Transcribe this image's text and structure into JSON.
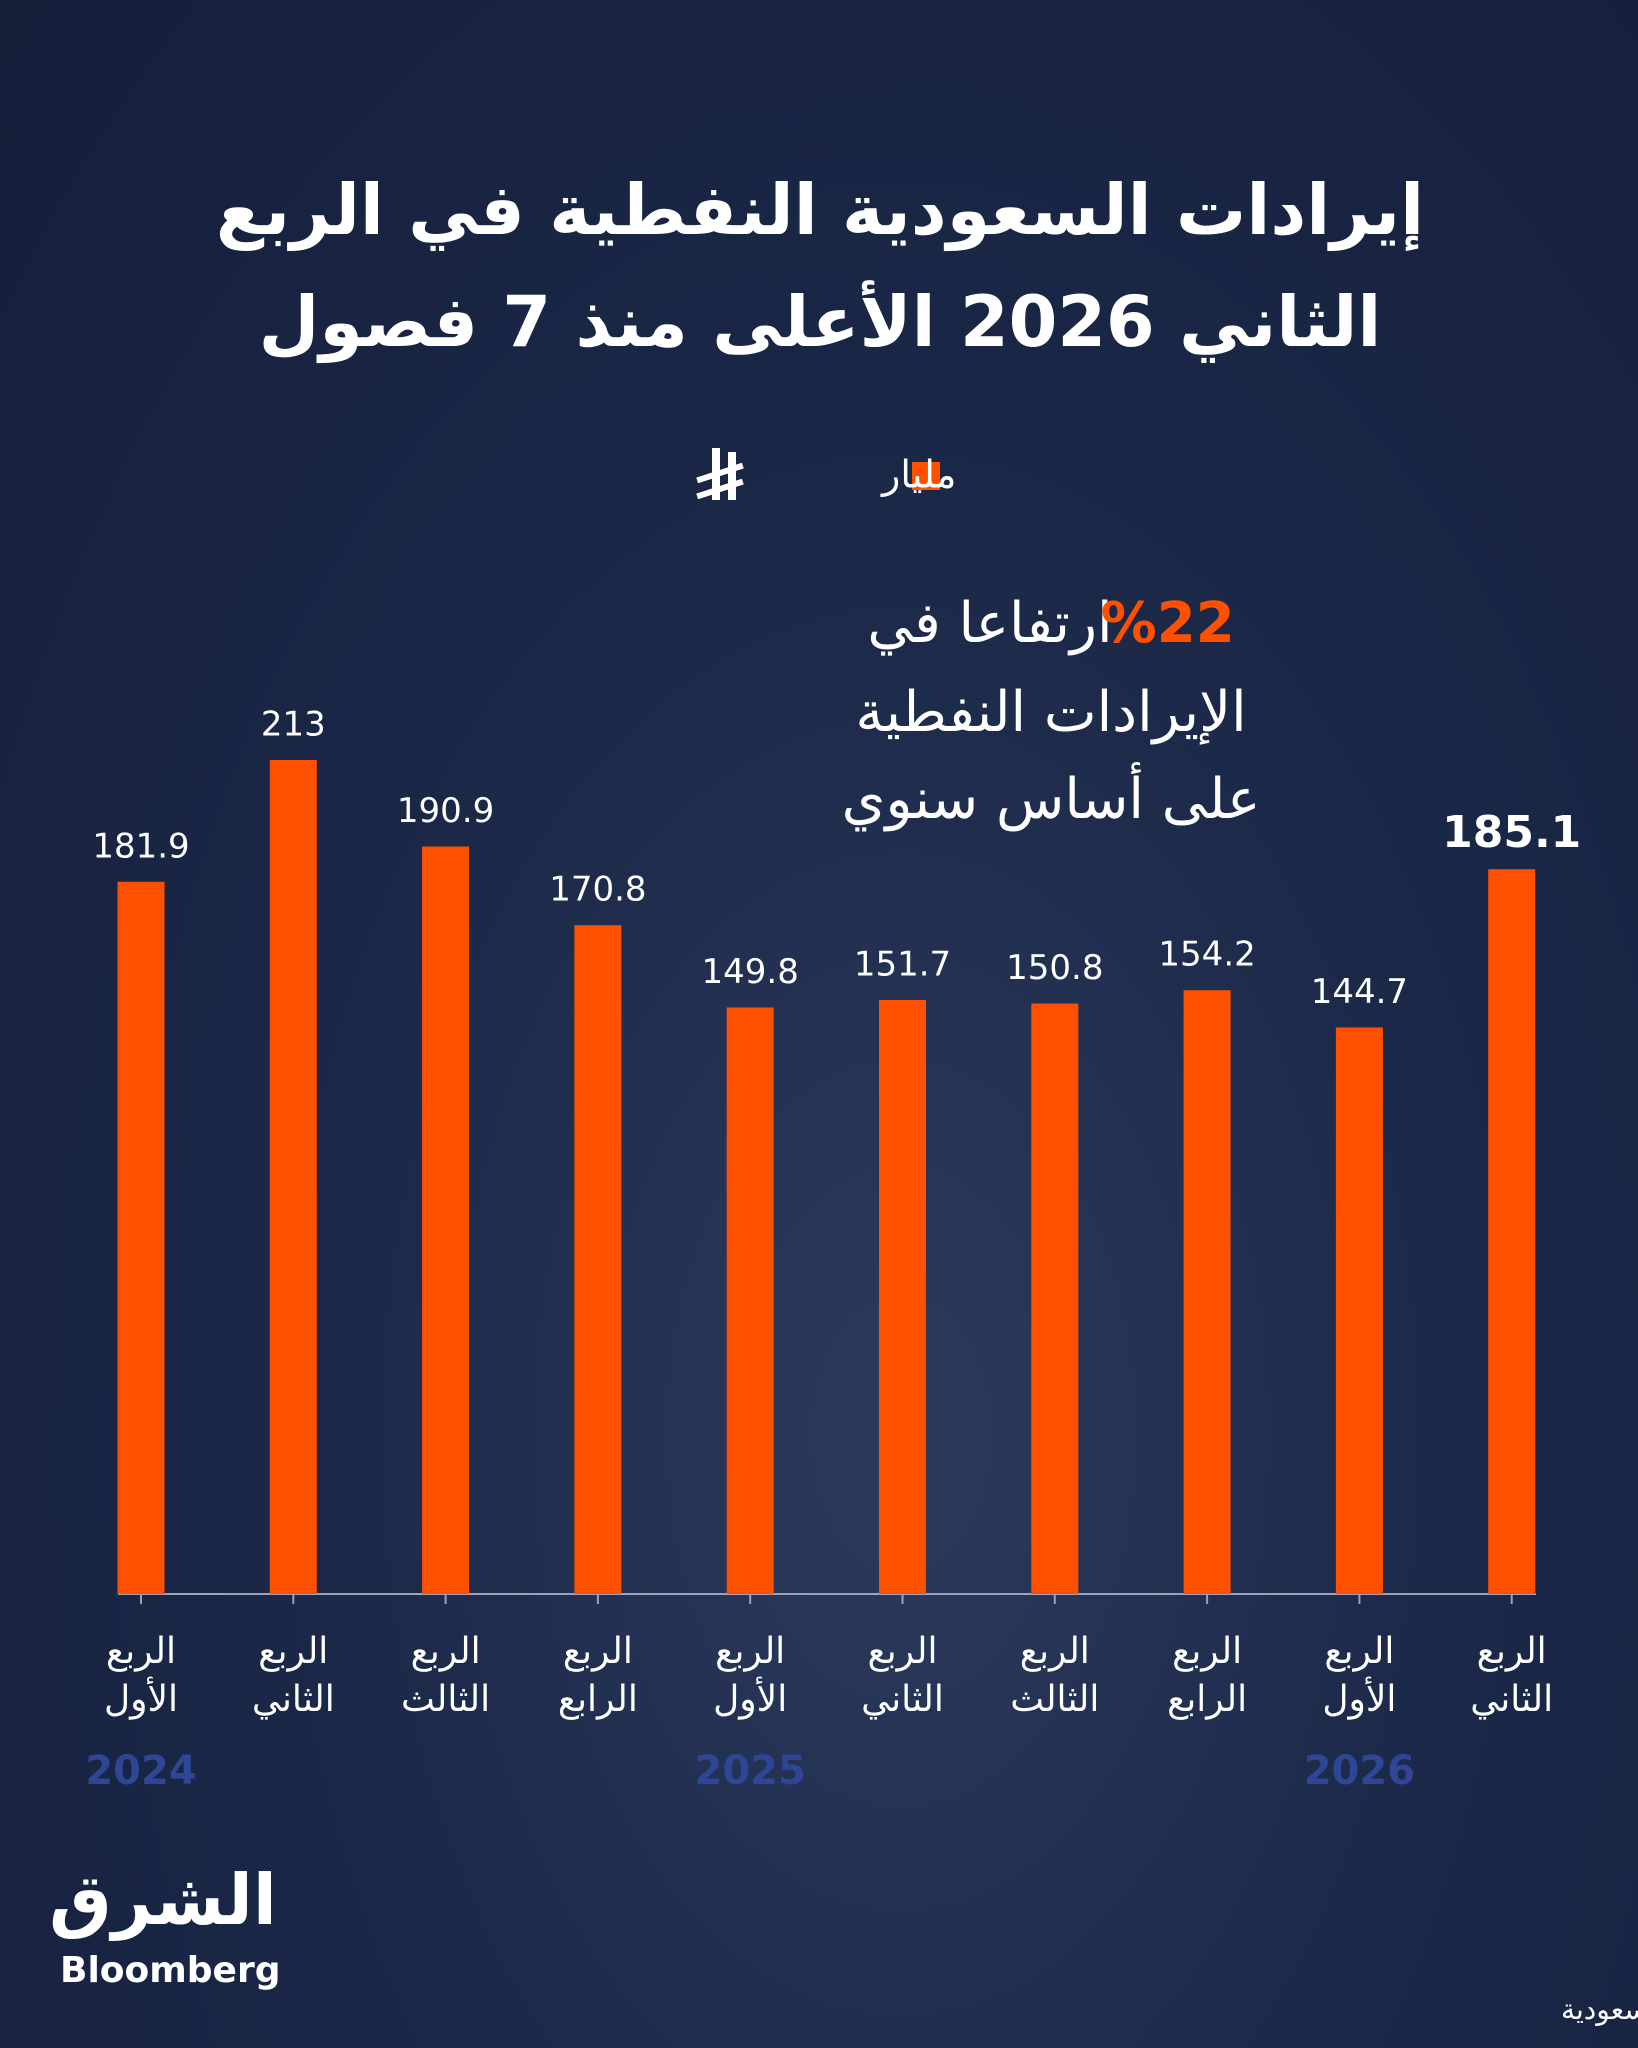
{
  "chart_data": {
    "type": "bar",
    "title": [
      "إيرادات السعودية النفطية في الربع",
      "الثاني 2026 الأعلى منذ 7 فصول"
    ],
    "categories": [
      "الربع الأول",
      "الربع الثاني",
      "الربع الثالث",
      "الربع الرابع",
      "الربع الأول",
      "الربع الثاني",
      "الربع الثالث",
      "الربع الرابع",
      "الربع الأول",
      "الربع الثاني"
    ],
    "year_labels": [
      "2024",
      null,
      null,
      null,
      "2025",
      null,
      null,
      null,
      "2026",
      null
    ],
    "series": [
      {
        "name": "مليار",
        "color": "#ff5000",
        "values": [
          181.9,
          213,
          190.9,
          170.8,
          149.8,
          151.7,
          150.8,
          154.2,
          144.7,
          185.1
        ]
      }
    ],
    "annotation": {
      "highlight": "%22",
      "lines": [
        "ارتفاعا في",
        "الإيرادات النفطية",
        "على أساس سنوي"
      ]
    },
    "source": "المصدر: بيانات وزارة المالية السعودية",
    "logo": {
      "brand": "الشرق",
      "partner": "Bloomberg"
    }
  }
}
